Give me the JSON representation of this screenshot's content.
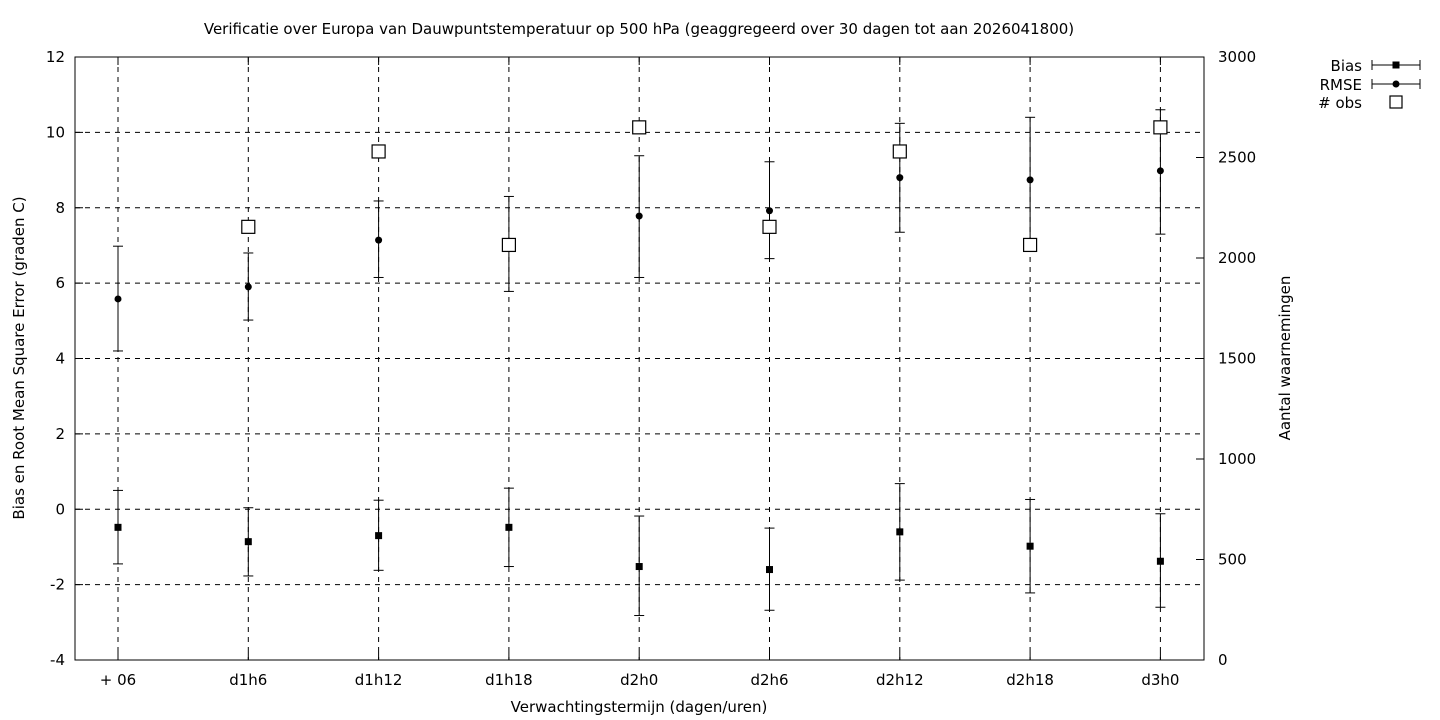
{
  "chart_data": {
    "type": "scatter",
    "title": "Verificatie over Europa van Dauwpuntstemperatuur op 500 hPa (geaggregeerd over 30 dagen tot aan 2026041800)",
    "xlabel": "Verwachtingstermijn (dagen/uren)",
    "ylabel": "Bias en Root Mean Square Error (graden C)",
    "y2label": "Aantal waarnemingen",
    "categories": [
      "+ 06",
      "d1h6",
      "d1h12",
      "d1h18",
      "d2h0",
      "d2h6",
      "d2h12",
      "d2h18",
      "d3h0"
    ],
    "ylim": [
      -4,
      12
    ],
    "yticks": [
      -4,
      -2,
      0,
      2,
      4,
      6,
      8,
      10,
      12
    ],
    "y2lim": [
      0,
      3000
    ],
    "y2ticks": [
      0,
      500,
      1000,
      1500,
      2000,
      2500,
      3000
    ],
    "grid": true,
    "legend_position": "top-right-outside",
    "series": [
      {
        "name": "Bias",
        "axis": "y",
        "marker": "square",
        "values": [
          -0.48,
          -0.86,
          -0.7,
          -0.48,
          -1.52,
          -1.6,
          -0.6,
          -0.98,
          -1.38
        ],
        "err_low": [
          -1.45,
          -1.77,
          -1.62,
          -1.52,
          -2.82,
          -2.68,
          -1.88,
          -2.22,
          -2.6
        ],
        "err_high": [
          0.5,
          0.04,
          0.24,
          0.56,
          -0.18,
          -0.5,
          0.68,
          0.26,
          -0.12
        ]
      },
      {
        "name": "RMSE",
        "axis": "y",
        "marker": "circle",
        "values": [
          5.58,
          5.9,
          7.14,
          7.04,
          7.78,
          7.92,
          8.8,
          8.74,
          8.98
        ],
        "err_low": [
          4.2,
          5.02,
          6.15,
          5.78,
          6.15,
          6.65,
          7.35,
          7.05,
          7.3
        ],
        "err_high": [
          6.98,
          6.8,
          8.18,
          8.3,
          9.38,
          9.22,
          10.24,
          10.4,
          10.6
        ]
      },
      {
        "name": "# obs",
        "axis": "y2",
        "marker": "open-square",
        "values": [
          null,
          2155,
          2530,
          2065,
          2650,
          2155,
          2530,
          2065,
          2650
        ]
      }
    ]
  }
}
